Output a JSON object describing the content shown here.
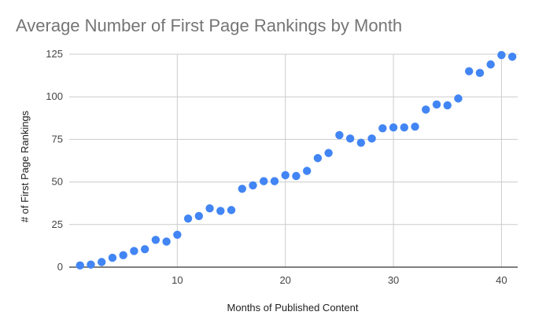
{
  "chart_data": {
    "type": "scatter",
    "title": "Average Number of First Page Rankings by Month",
    "xlabel": "Months of Published Content",
    "ylabel": "# of First Page Rankings",
    "xlim": [
      0,
      41.5
    ],
    "ylim": [
      0,
      125
    ],
    "x_ticks": [
      10,
      20,
      30,
      40
    ],
    "y_ticks": [
      0,
      25,
      50,
      75,
      100,
      125
    ],
    "grid": true,
    "legend": "none",
    "point_color": "#4285f4",
    "points": [
      {
        "x": 1,
        "y": 1
      },
      {
        "x": 2,
        "y": 1.5
      },
      {
        "x": 3,
        "y": 3
      },
      {
        "x": 4,
        "y": 5.5
      },
      {
        "x": 5,
        "y": 7
      },
      {
        "x": 6,
        "y": 9.5
      },
      {
        "x": 7,
        "y": 10.5
      },
      {
        "x": 8,
        "y": 16
      },
      {
        "x": 9,
        "y": 15
      },
      {
        "x": 10,
        "y": 19
      },
      {
        "x": 11,
        "y": 28.5
      },
      {
        "x": 12,
        "y": 30
      },
      {
        "x": 13,
        "y": 34.5
      },
      {
        "x": 14,
        "y": 33
      },
      {
        "x": 15,
        "y": 33.5
      },
      {
        "x": 16,
        "y": 46
      },
      {
        "x": 17,
        "y": 48
      },
      {
        "x": 18,
        "y": 50.5
      },
      {
        "x": 19,
        "y": 50.5
      },
      {
        "x": 20,
        "y": 54
      },
      {
        "x": 21,
        "y": 53.5
      },
      {
        "x": 22,
        "y": 56.5
      },
      {
        "x": 23,
        "y": 64
      },
      {
        "x": 24,
        "y": 67
      },
      {
        "x": 25,
        "y": 77.5
      },
      {
        "x": 26,
        "y": 75.5
      },
      {
        "x": 27,
        "y": 73
      },
      {
        "x": 28,
        "y": 75.5
      },
      {
        "x": 29,
        "y": 81.5
      },
      {
        "x": 30,
        "y": 82
      },
      {
        "x": 31,
        "y": 82
      },
      {
        "x": 32,
        "y": 82.5
      },
      {
        "x": 33,
        "y": 92.5
      },
      {
        "x": 34,
        "y": 95.5
      },
      {
        "x": 35,
        "y": 95
      },
      {
        "x": 36,
        "y": 99
      },
      {
        "x": 37,
        "y": 115
      },
      {
        "x": 38,
        "y": 114
      },
      {
        "x": 39,
        "y": 119
      },
      {
        "x": 40,
        "y": 124.5
      },
      {
        "x": 41,
        "y": 123.5
      }
    ]
  }
}
